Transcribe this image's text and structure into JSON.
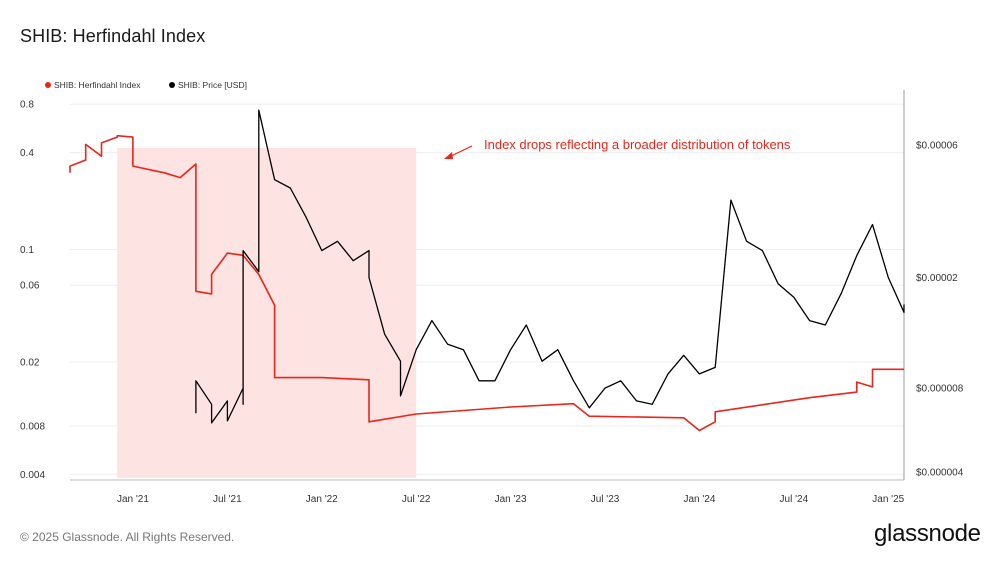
{
  "page": {
    "title": "SHIB: Herfindahl Index",
    "footer": "© 2025 Glassnode. All Rights Reserved.",
    "brand": "glassnode"
  },
  "colors": {
    "index_line": "#e8261c",
    "price_line": "#000000",
    "highlight": "#fde3e1",
    "grid": "#eeeeee"
  },
  "chart_data": {
    "type": "line",
    "title": "SHIB: Herfindahl Index",
    "legend": [
      {
        "label": "SHIB: Herfindahl Index",
        "color": "#e8261c"
      },
      {
        "label": "SHIB: Price [USD]",
        "color": "#000000"
      }
    ],
    "legend_position": "top-left",
    "x_ticks": [
      "Jan '21",
      "Jul '21",
      "Jan '22",
      "Jul '22",
      "Jan '23",
      "Jul '23",
      "Jan '24",
      "Jul '24",
      "Jan '25"
    ],
    "x_range": [
      "2020-09",
      "2025-02"
    ],
    "y_left": {
      "scale": "log",
      "ticks": [
        "0.8",
        "0.4",
        "0.1",
        "0.06",
        "0.02",
        "0.008",
        "0.004"
      ],
      "range": [
        0.0038,
        0.9
      ]
    },
    "y_right": {
      "scale": "log",
      "ticks": [
        "$0.00006",
        "$0.00002",
        "$0.000008",
        "$0.000004"
      ],
      "range": [
        3.8e-06,
        9e-05
      ]
    },
    "shaded_region": {
      "start": "2020-12",
      "end": "2022-07"
    },
    "annotation": "Index drops reflecting a broader distribution of tokens",
    "series": [
      {
        "name": "SHIB: Herfindahl Index",
        "axis": "left",
        "points": [
          [
            "2020-09",
            0.3
          ],
          [
            "2020-09",
            0.33
          ],
          [
            "2020-10",
            0.36
          ],
          [
            "2020-10",
            0.45
          ],
          [
            "2020-11",
            0.38
          ],
          [
            "2020-11",
            0.42
          ],
          [
            "2020-11",
            0.46
          ],
          [
            "2020-12",
            0.5
          ],
          [
            "2020-12",
            0.51
          ],
          [
            "2021-01",
            0.5
          ],
          [
            "2021-01",
            0.33
          ],
          [
            "2021-03",
            0.3
          ],
          [
            "2021-04",
            0.28
          ],
          [
            "2021-05",
            0.34
          ],
          [
            "2021-05",
            0.055
          ],
          [
            "2021-06",
            0.053
          ],
          [
            "2021-06",
            0.07
          ],
          [
            "2021-07",
            0.095
          ],
          [
            "2021-08",
            0.092
          ],
          [
            "2021-09",
            0.07
          ],
          [
            "2021-10",
            0.045
          ],
          [
            "2021-10",
            0.016
          ],
          [
            "2022-01",
            0.016
          ],
          [
            "2022-04",
            0.0155
          ],
          [
            "2022-04",
            0.0085
          ],
          [
            "2022-07",
            0.0095
          ],
          [
            "2023-01",
            0.0105
          ],
          [
            "2023-05",
            0.011
          ],
          [
            "2023-06",
            0.0092
          ],
          [
            "2023-12",
            0.009
          ],
          [
            "2024-01",
            0.0075
          ],
          [
            "2024-02",
            0.0085
          ],
          [
            "2024-02",
            0.0098
          ],
          [
            "2024-08",
            0.012
          ],
          [
            "2024-11",
            0.013
          ],
          [
            "2024-11",
            0.015
          ],
          [
            "2024-12",
            0.014
          ],
          [
            "2024-12",
            0.018
          ],
          [
            "2025-02",
            0.018
          ]
        ]
      },
      {
        "name": "SHIB: Price [USD]",
        "axis": "right",
        "points": [
          [
            "2021-05",
            6.5e-06
          ],
          [
            "2021-05",
            8.5e-06
          ],
          [
            "2021-06",
            7e-06
          ],
          [
            "2021-06",
            6e-06
          ],
          [
            "2021-07",
            7.2e-06
          ],
          [
            "2021-07",
            6.1e-06
          ],
          [
            "2021-08",
            8e-06
          ],
          [
            "2021-08",
            7e-06
          ],
          [
            "2021-08",
            2.5e-05
          ],
          [
            "2021-09",
            2.1e-05
          ],
          [
            "2021-09",
            8e-05
          ],
          [
            "2021-10",
            4.5e-05
          ],
          [
            "2021-11",
            4.2e-05
          ],
          [
            "2021-12",
            3.3e-05
          ],
          [
            "2022-01",
            2.5e-05
          ],
          [
            "2022-02",
            2.7e-05
          ],
          [
            "2022-03",
            2.3e-05
          ],
          [
            "2022-04",
            2.5e-05
          ],
          [
            "2022-04",
            2e-05
          ],
          [
            "2022-05",
            1.25e-05
          ],
          [
            "2022-06",
            1e-05
          ],
          [
            "2022-06",
            7.5e-06
          ],
          [
            "2022-07",
            1.1e-05
          ],
          [
            "2022-08",
            1.4e-05
          ],
          [
            "2022-09",
            1.15e-05
          ],
          [
            "2022-10",
            1.1e-05
          ],
          [
            "2022-11",
            8.5e-06
          ],
          [
            "2022-12",
            8.5e-06
          ],
          [
            "2023-01",
            1.1e-05
          ],
          [
            "2023-02",
            1.35e-05
          ],
          [
            "2023-03",
            1e-05
          ],
          [
            "2023-04",
            1.1e-05
          ],
          [
            "2023-05",
            8.5e-06
          ],
          [
            "2023-06",
            6.8e-06
          ],
          [
            "2023-07",
            8e-06
          ],
          [
            "2023-08",
            8.5e-06
          ],
          [
            "2023-09",
            7.2e-06
          ],
          [
            "2023-10",
            7e-06
          ],
          [
            "2023-11",
            9e-06
          ],
          [
            "2023-12",
            1.05e-05
          ],
          [
            "2024-01",
            9e-06
          ],
          [
            "2024-02",
            9.5e-06
          ],
          [
            "2024-03",
            3.8e-05
          ],
          [
            "2024-04",
            2.7e-05
          ],
          [
            "2024-05",
            2.5e-05
          ],
          [
            "2024-06",
            1.9e-05
          ],
          [
            "2024-07",
            1.7e-05
          ],
          [
            "2024-08",
            1.4e-05
          ],
          [
            "2024-09",
            1.35e-05
          ],
          [
            "2024-10",
            1.75e-05
          ],
          [
            "2024-11",
            2.4e-05
          ],
          [
            "2024-12",
            3.1e-05
          ],
          [
            "2025-01",
            2e-05
          ],
          [
            "2025-02",
            1.5e-05
          ],
          [
            "2025-02",
            1.6e-05
          ]
        ]
      }
    ]
  }
}
